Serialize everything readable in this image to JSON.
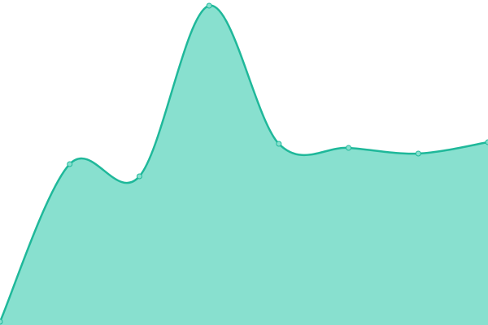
{
  "chart_data": {
    "type": "area",
    "values": [
      4,
      198,
      183,
      393,
      223,
      218,
      211,
      225
    ],
    "color": "#1fb89a",
    "area_color": "#88e0cf",
    "markers": true
  }
}
